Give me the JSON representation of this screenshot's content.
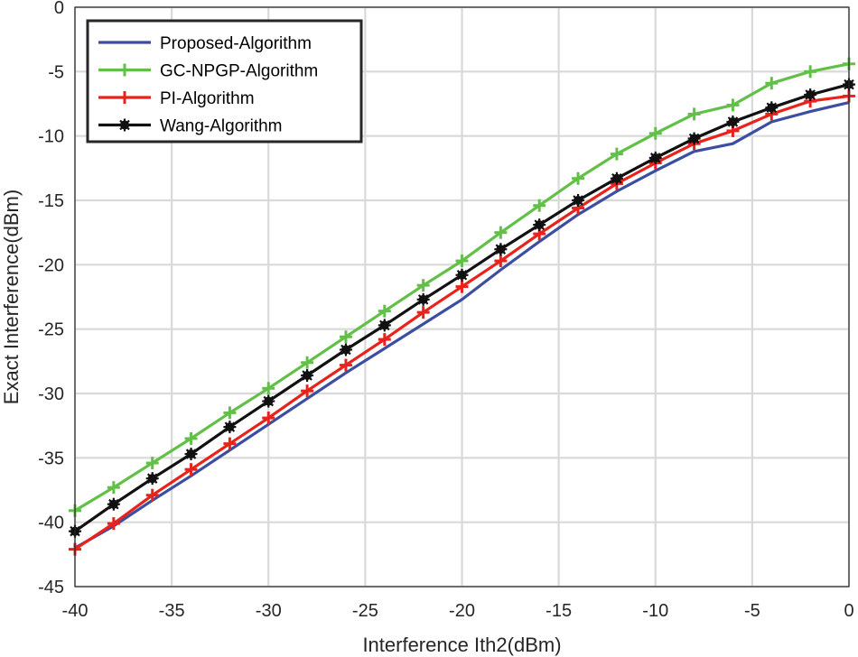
{
  "chart_data": {
    "type": "line",
    "title": "",
    "xlabel": "Interference Ith2(dBm)",
    "ylabel": "Exact Interference(dBm)",
    "xlim": [
      -40,
      0
    ],
    "ylim": [
      -45,
      0
    ],
    "grid": true,
    "legend_position": "top-left",
    "x_ticks": [
      -40,
      -35,
      -30,
      -25,
      -20,
      -15,
      -10,
      -5,
      0
    ],
    "y_ticks": [
      0,
      -5,
      -10,
      -15,
      -20,
      -25,
      -30,
      -35,
      -40,
      -45
    ],
    "x_tick_labels": [
      "-40",
      "-35",
      "-30",
      "-25",
      "-20",
      "-15",
      "-10",
      "-5",
      "0"
    ],
    "y_tick_labels": [
      "0",
      "-5",
      "-10",
      "-15",
      "-20",
      "-25",
      "-30",
      "-35",
      "-40",
      "-45"
    ],
    "x": [
      -40,
      -38,
      -36,
      -34,
      -32,
      -30,
      -28,
      -26,
      -24,
      -22,
      -20,
      -18,
      -16,
      -14,
      -12,
      -10,
      -8,
      -6,
      -4,
      -2,
      0
    ],
    "series": [
      {
        "name": "Proposed-Algorithm",
        "color": "#3b4ea0",
        "marker": "none",
        "values": [
          -42.0,
          -40.3,
          -38.3,
          -36.4,
          -34.4,
          -32.4,
          -30.4,
          -28.4,
          -26.5,
          -24.6,
          -22.7,
          -20.4,
          -18.2,
          -16.1,
          -14.3,
          -12.7,
          -11.2,
          -10.6,
          -8.9,
          -8.1,
          -7.4
        ]
      },
      {
        "name": "GC-NPGP-Algorithm",
        "color": "#62c048",
        "marker": "plus",
        "values": [
          -39.1,
          -37.3,
          -35.4,
          -33.5,
          -31.5,
          -29.6,
          -27.6,
          -25.6,
          -23.6,
          -21.6,
          -19.7,
          -17.5,
          -15.4,
          -13.3,
          -11.4,
          -9.8,
          -8.3,
          -7.6,
          -5.9,
          -5.0,
          -4.4
        ]
      },
      {
        "name": "PI-Algorithm",
        "color": "#e8231c",
        "marker": "plus",
        "values": [
          -42.1,
          -40.1,
          -37.9,
          -35.9,
          -33.9,
          -31.9,
          -29.8,
          -27.8,
          -25.8,
          -23.7,
          -21.7,
          -19.7,
          -17.6,
          -15.6,
          -13.7,
          -12.1,
          -10.6,
          -9.6,
          -8.3,
          -7.3,
          -6.9
        ]
      },
      {
        "name": "Wang-Algorithm",
        "color": "#111111",
        "marker": "star",
        "values": [
          -40.7,
          -38.6,
          -36.6,
          -34.7,
          -32.6,
          -30.6,
          -28.6,
          -26.6,
          -24.7,
          -22.7,
          -20.8,
          -18.8,
          -16.9,
          -15.0,
          -13.3,
          -11.7,
          -10.2,
          -8.9,
          -7.8,
          -6.8,
          -6.0
        ]
      }
    ]
  }
}
